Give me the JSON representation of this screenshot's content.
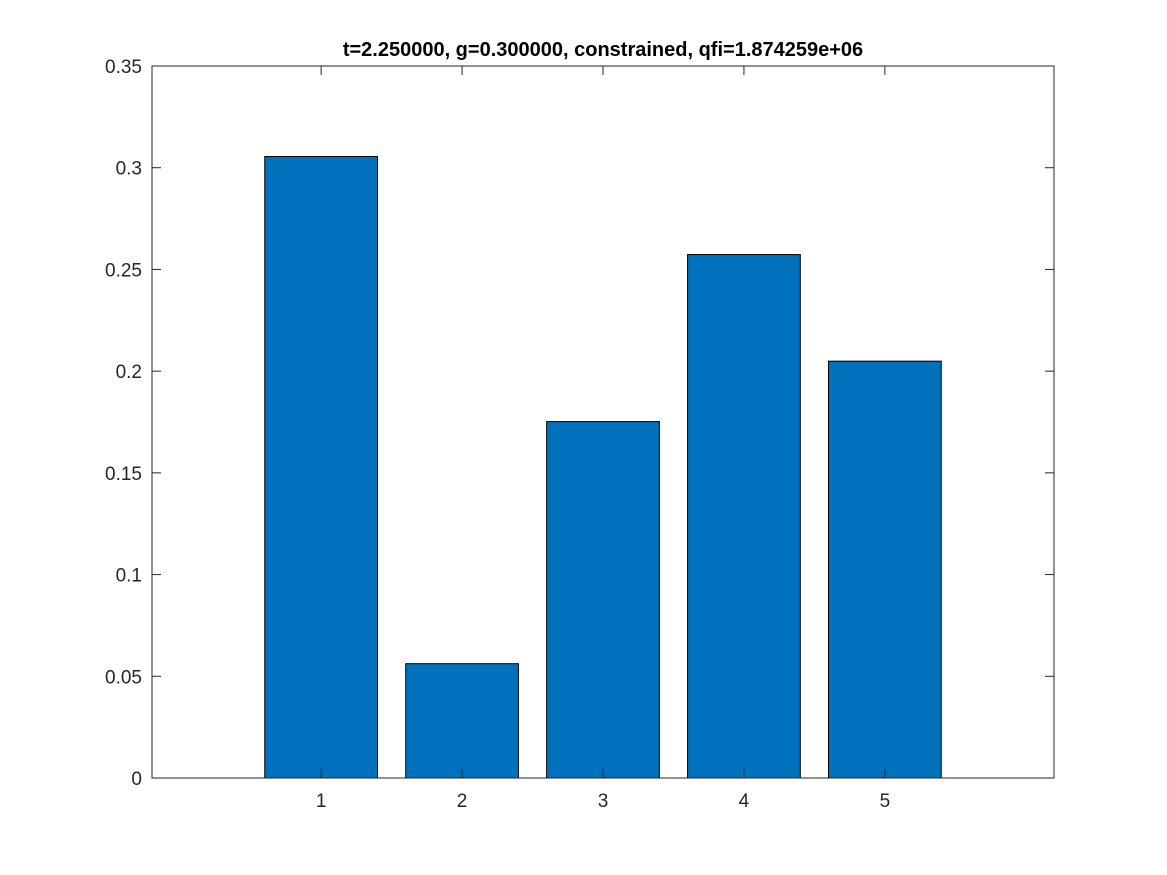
{
  "chart_data": {
    "type": "bar",
    "title": "t=2.250000, g=0.300000, constrained, qfi=1.874259e+06",
    "xlabel": "",
    "ylabel": "",
    "categories": [
      "1",
      "2",
      "3",
      "4",
      "5"
    ],
    "values": [
      0.3055,
      0.0562,
      0.1752,
      0.2573,
      0.2049
    ],
    "xlim": [
      -0.2,
      6.2
    ],
    "ylim": [
      0,
      0.35
    ],
    "yticks": [
      0,
      0.05,
      0.1,
      0.15,
      0.2,
      0.25,
      0.3,
      0.35
    ],
    "ytick_labels": [
      "0",
      "0.05",
      "0.1",
      "0.15",
      "0.2",
      "0.25",
      "0.3",
      "0.35"
    ],
    "xticks": [
      1,
      2,
      3,
      4,
      5
    ],
    "xtick_labels": [
      "1",
      "2",
      "3",
      "4",
      "5"
    ],
    "bar_color": "#0072BD",
    "edge_color": "#000000",
    "grid": false,
    "legend": false
  }
}
